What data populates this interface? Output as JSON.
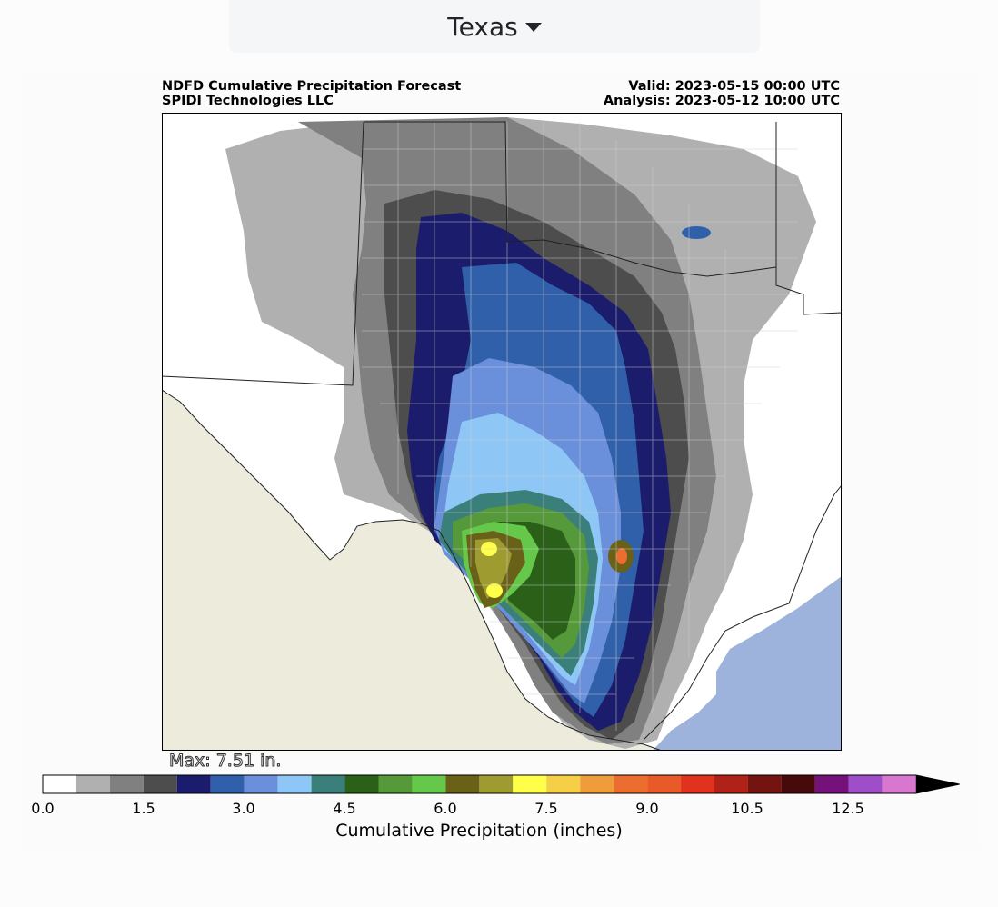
{
  "region_select": {
    "label": "Texas",
    "caret": "caret-down-icon"
  },
  "header": {
    "title_line1": "NDFD Cumulative Precipitation Forecast",
    "title_line2": "SPIDI Technologies LLC",
    "valid": "Valid: 2023-05-15 00:00 UTC",
    "analysis": "Analysis: 2023-05-12 10:00 UTC"
  },
  "map": {
    "max_label": "Max: 7.51 in.",
    "ocean_color": "#9db3dc",
    "mexico_color": "#ecebdc"
  },
  "colorbar": {
    "label": "Cumulative Precipitation (inches)",
    "ticks": [
      "0.0",
      "1.5",
      "3.0",
      "4.5",
      "6.0",
      "7.5",
      "9.0",
      "10.5",
      "12.5"
    ],
    "colors": [
      "#ffffff",
      "#b0b0b0",
      "#808080",
      "#4d4d4d",
      "#1b1c6b",
      "#3060aa",
      "#6a8fdb",
      "#8ec7f5",
      "#3a7f7a",
      "#2a6018",
      "#55993a",
      "#66c84a",
      "#6a6118",
      "#9e9b30",
      "#ffff4a",
      "#f5cf45",
      "#ef9c3a",
      "#ec6d30",
      "#e85a2a",
      "#e0321e",
      "#b02218",
      "#741410",
      "#470a0a",
      "#74127a",
      "#9e4fc8",
      "#d877d0"
    ],
    "extend_color": "#000000"
  }
}
